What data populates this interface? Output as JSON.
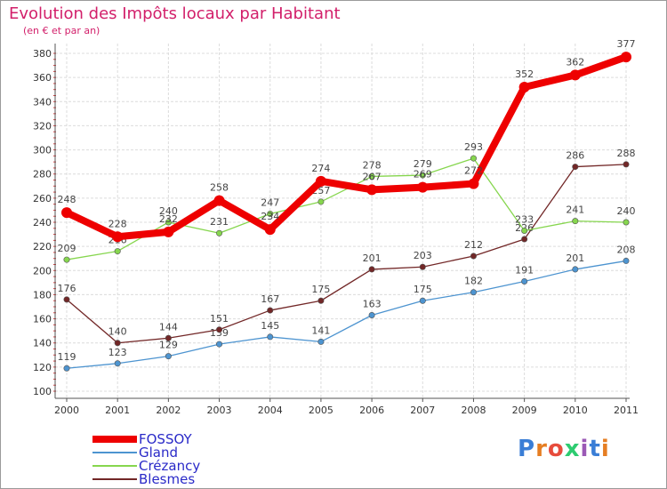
{
  "title": "Evolution des Impôts locaux par Habitant",
  "subtitle": "(en € et par an)",
  "brand": "Proxiti",
  "chart_data": {
    "type": "line",
    "title": "Evolution des Impôts locaux par Habitant",
    "subtitle": "(en € et par an)",
    "xlabel": "",
    "ylabel": "",
    "categories": [
      "2000",
      "2001",
      "2002",
      "2003",
      "2004",
      "2005",
      "2006",
      "2007",
      "2008",
      "2009",
      "2010",
      "2011"
    ],
    "ylim": [
      100,
      380
    ],
    "yticks": [
      100,
      120,
      140,
      160,
      180,
      200,
      220,
      240,
      260,
      280,
      300,
      320,
      340,
      360,
      380
    ],
    "grid": true,
    "legend": "bottom-left",
    "series": [
      {
        "name": "Gland",
        "color": "#4d94d0",
        "values": [
          119,
          123,
          129,
          139,
          145,
          141,
          163,
          175,
          182,
          191,
          201,
          208
        ]
      },
      {
        "name": "Blesmes",
        "color": "#722727",
        "values": [
          176,
          140,
          144,
          151,
          167,
          175,
          201,
          203,
          212,
          226,
          286,
          288
        ]
      },
      {
        "name": "Crézancy",
        "color": "#86d64e",
        "values": [
          209,
          216,
          240,
          231,
          247,
          257,
          278,
          279,
          293,
          233,
          241,
          240
        ]
      },
      {
        "name": "FOSSOY",
        "color": "#ee0000",
        "values": [
          248,
          228,
          232,
          258,
          234,
          274,
          267,
          269,
          272,
          352,
          362,
          377
        ]
      }
    ],
    "legend_order": [
      "FOSSOY",
      "Gland",
      "Crézancy",
      "Blesmes"
    ]
  }
}
